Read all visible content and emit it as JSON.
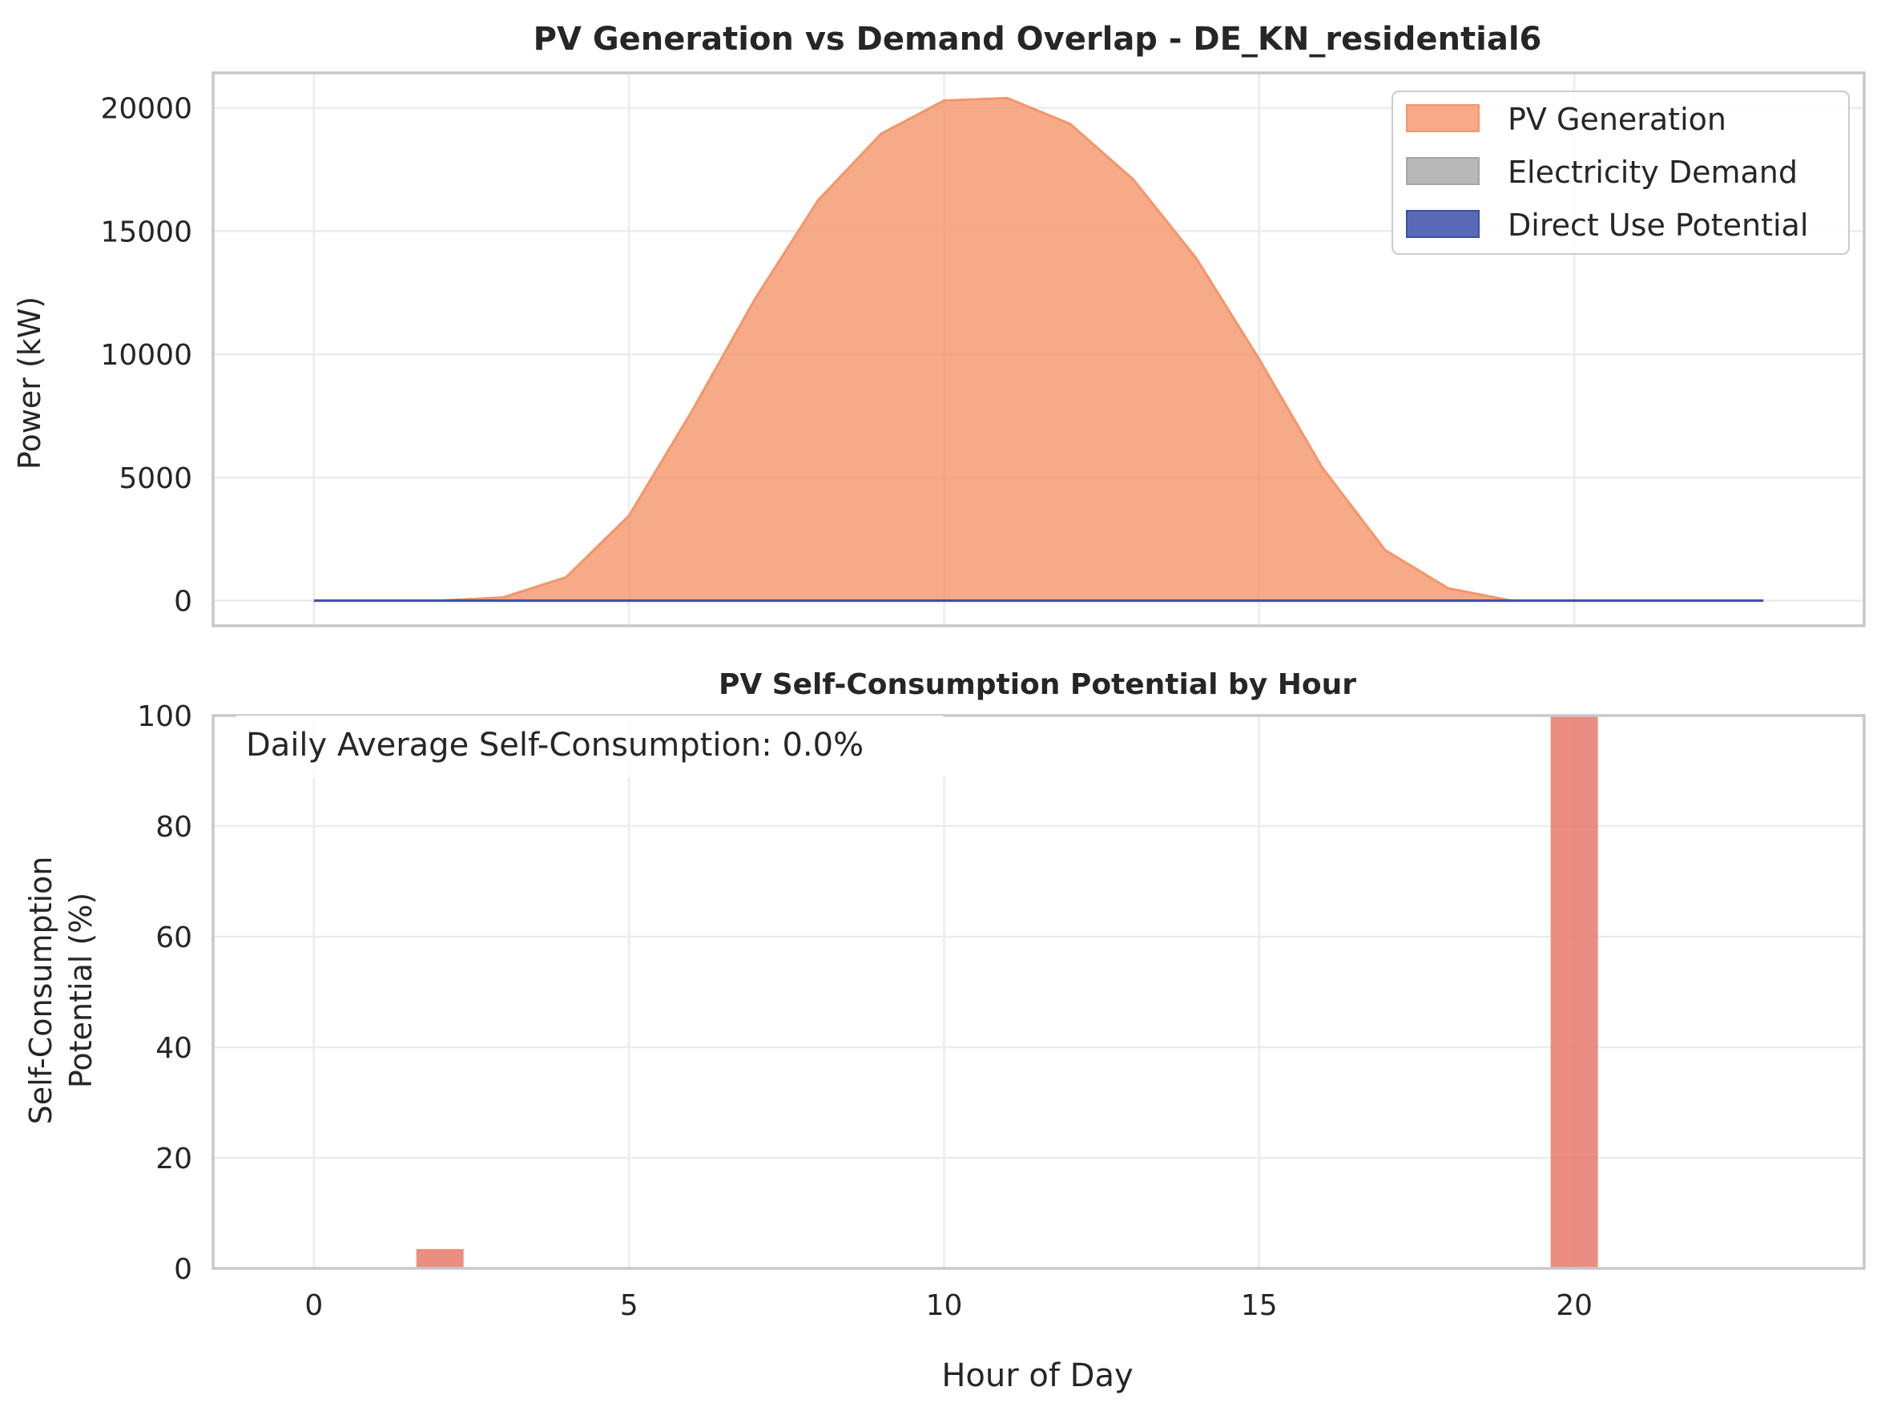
{
  "chart_data": [
    {
      "type": "area",
      "title": "PV Generation vs Demand Overlap - DE_KN_residential6",
      "xlabel": "",
      "ylabel": "Power (kW)",
      "xlim": [
        -1.6,
        24.6
      ],
      "ylim": [
        -1020,
        21420
      ],
      "yticks": [
        0,
        5000,
        10000,
        15000,
        20000
      ],
      "tick_labels_y": [
        "0",
        "5000",
        "10000",
        "15000",
        "20000"
      ],
      "x": [
        0,
        1,
        2,
        3,
        4,
        5,
        6,
        7,
        8,
        9,
        10,
        11,
        12,
        13,
        14,
        15,
        16,
        17,
        18,
        19,
        20,
        21,
        22,
        23
      ],
      "series": [
        {
          "name": "PV Generation",
          "color": "#f4956a",
          "opacity": 0.8,
          "values": [
            0,
            0,
            0,
            130,
            950,
            3450,
            7700,
            12250,
            16250,
            18950,
            20300,
            20400,
            19350,
            17100,
            13900,
            9800,
            5400,
            2050,
            500,
            0,
            0,
            0,
            0,
            0
          ]
        },
        {
          "name": "Electricity Demand",
          "color": "#a6a6a6",
          "opacity": 0.8,
          "values": [
            0,
            0,
            0,
            0,
            0,
            0,
            0,
            0,
            0,
            0,
            0,
            0,
            0,
            0,
            0,
            0,
            0,
            0,
            0,
            0,
            0,
            0,
            0,
            0
          ]
        },
        {
          "name": "Direct Use Potential",
          "color": "#3c4fa8",
          "opacity": 0.85,
          "values": [
            0,
            0,
            0,
            0,
            0,
            0,
            0,
            0,
            0,
            0,
            0,
            0,
            0,
            0,
            0,
            0,
            0,
            0,
            0,
            0,
            0,
            0,
            0,
            0
          ]
        }
      ],
      "legend_placement": "top-right",
      "grid": true
    },
    {
      "type": "bar",
      "title": "PV Self-Consumption Potential by Hour",
      "xlabel": "Hour of Day",
      "ylabel_lines": [
        "Self-Consumption",
        "Potential (%)"
      ],
      "xlim": [
        -1.6,
        24.6
      ],
      "ylim": [
        0,
        100
      ],
      "xticks": [
        0,
        5,
        10,
        15,
        20
      ],
      "tick_labels_x": [
        "0",
        "5",
        "10",
        "15",
        "20"
      ],
      "yticks": [
        0,
        20,
        40,
        60,
        80,
        100
      ],
      "tick_labels_y": [
        "0",
        "20",
        "40",
        "60",
        "80",
        "100"
      ],
      "x": [
        0,
        1,
        2,
        3,
        4,
        5,
        6,
        7,
        8,
        9,
        10,
        11,
        12,
        13,
        14,
        15,
        16,
        17,
        18,
        19,
        20,
        21,
        22,
        23
      ],
      "values": [
        0,
        0,
        3.5,
        0,
        0,
        0,
        0,
        0,
        0,
        0,
        0,
        0,
        0,
        0,
        0,
        0,
        0,
        0,
        0,
        0,
        100,
        0,
        0,
        0
      ],
      "bar_color": "#e8796a",
      "annotation": "Daily Average Self-Consumption: 0.0%",
      "grid": true
    }
  ]
}
